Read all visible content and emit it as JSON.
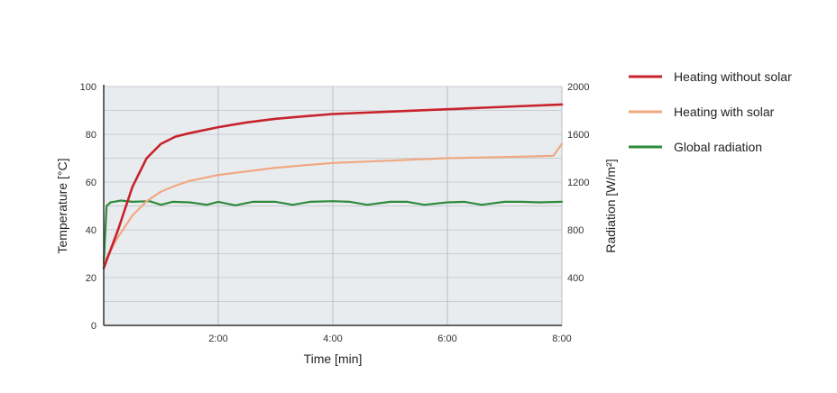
{
  "chart_data": {
    "type": "line",
    "title": "",
    "xlabel": "Time [min]",
    "ylabel": "Temperature [°C]",
    "y2label": "Radiation [W/m²]",
    "xlim": [
      0,
      8
    ],
    "ylim": [
      0,
      100
    ],
    "y2lim": [
      0,
      2000
    ],
    "x_ticks": [
      {
        "value": 2,
        "label": "2:00"
      },
      {
        "value": 4,
        "label": "4:00"
      },
      {
        "value": 6,
        "label": "6:00"
      },
      {
        "value": 8,
        "label": "8:00"
      }
    ],
    "y_ticks": [
      0,
      20,
      40,
      60,
      80,
      100
    ],
    "y2_ticks": [
      400,
      800,
      1200,
      1600,
      2000
    ],
    "grid": true,
    "legend_position": "right",
    "series": [
      {
        "name": "Heating without solar",
        "axis": "left",
        "color": "#c8232c",
        "x": [
          0,
          0.25,
          0.5,
          0.75,
          1,
          1.25,
          1.5,
          2,
          2.5,
          3,
          3.5,
          4,
          5,
          6,
          7,
          8
        ],
        "y": [
          24,
          40,
          58,
          70,
          76,
          79,
          80.5,
          83,
          85,
          86.5,
          87.5,
          88.5,
          89.5,
          90.5,
          91.5,
          92.5
        ]
      },
      {
        "name": "Heating with solar",
        "axis": "left",
        "color": "#f0a882",
        "x": [
          0,
          0.25,
          0.5,
          0.75,
          1,
          1.25,
          1.5,
          2,
          2.5,
          3,
          3.5,
          4,
          5,
          6,
          7,
          7.85,
          8
        ],
        "y": [
          26,
          37,
          46,
          52,
          56,
          58.5,
          60.5,
          63,
          64.5,
          66,
          67,
          68,
          69,
          70,
          70.5,
          71,
          76
        ]
      },
      {
        "name": "Global radiation",
        "axis": "right",
        "color": "#2e8b3e",
        "x": [
          0,
          0.05,
          0.12,
          0.3,
          0.5,
          0.8,
          1,
          1.2,
          1.5,
          1.8,
          2,
          2.3,
          2.6,
          3,
          3.3,
          3.6,
          4,
          4.3,
          4.6,
          5,
          5.3,
          5.6,
          6,
          6.3,
          6.6,
          7,
          7.3,
          7.6,
          8
        ],
        "y": [
          520,
          1000,
          1030,
          1045,
          1035,
          1040,
          1010,
          1035,
          1030,
          1010,
          1035,
          1005,
          1035,
          1035,
          1010,
          1035,
          1040,
          1035,
          1010,
          1035,
          1035,
          1010,
          1030,
          1035,
          1010,
          1035,
          1035,
          1030,
          1035
        ]
      }
    ]
  }
}
